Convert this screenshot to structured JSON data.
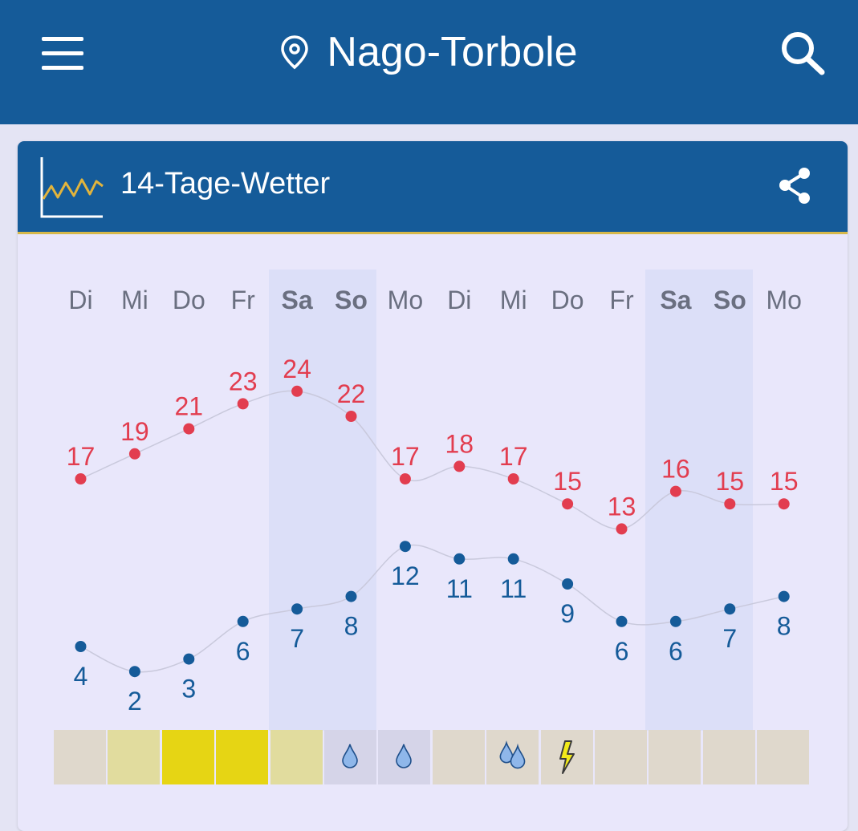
{
  "app_bar": {
    "title": "Nago-Torbole",
    "background": "#155b99",
    "menu_icon": "menu-icon",
    "location_icon": "location-pin-icon",
    "search_icon": "search-icon"
  },
  "card": {
    "title": "14-Tage-Wetter",
    "chart_icon": "chart-line-icon",
    "share_icon": "share-icon"
  },
  "days": [
    {
      "label": "Di",
      "weekend": false,
      "max": 17,
      "min": 4,
      "tile_color": "#dfd8cc",
      "precip_icon": ""
    },
    {
      "label": "Mi",
      "weekend": false,
      "max": 19,
      "min": 2,
      "tile_color": "#e1dc9e",
      "precip_icon": ""
    },
    {
      "label": "Do",
      "weekend": false,
      "max": 21,
      "min": 3,
      "tile_color": "#e6d514",
      "precip_icon": ""
    },
    {
      "label": "Fr",
      "weekend": false,
      "max": 23,
      "min": 6,
      "tile_color": "#e6d514",
      "precip_icon": ""
    },
    {
      "label": "Sa",
      "weekend": true,
      "max": 24,
      "min": 7,
      "tile_color": "#e1dc9e",
      "precip_icon": ""
    },
    {
      "label": "So",
      "weekend": true,
      "max": 22,
      "min": 8,
      "tile_color": "#d5d4e8",
      "precip_icon": "raindrop-icon"
    },
    {
      "label": "Mo",
      "weekend": false,
      "max": 17,
      "min": 12,
      "tile_color": "#d5d4e8",
      "precip_icon": "raindrop-icon"
    },
    {
      "label": "Di",
      "weekend": false,
      "max": 18,
      "min": 11,
      "tile_color": "#dfd8cc",
      "precip_icon": ""
    },
    {
      "label": "Mi",
      "weekend": false,
      "max": 17,
      "min": 11,
      "tile_color": "#dfd8cc",
      "precip_icon": "raindrops-icon"
    },
    {
      "label": "Do",
      "weekend": false,
      "max": 15,
      "min": 9,
      "tile_color": "#dfd8cc",
      "precip_icon": "thunder-icon"
    },
    {
      "label": "Fr",
      "weekend": false,
      "max": 13,
      "min": 6,
      "tile_color": "#dfd8cc",
      "precip_icon": ""
    },
    {
      "label": "Sa",
      "weekend": true,
      "max": 16,
      "min": 6,
      "tile_color": "#dfd8cc",
      "precip_icon": ""
    },
    {
      "label": "So",
      "weekend": true,
      "max": 15,
      "min": 7,
      "tile_color": "#dfd8cc",
      "precip_icon": ""
    },
    {
      "label": "Mo",
      "weekend": false,
      "max": 15,
      "min": 8,
      "tile_color": "#dfd8cc",
      "precip_icon": ""
    }
  ],
  "colors": {
    "max_temp": "#e23d4f",
    "min_temp": "#155b99",
    "weekend_band": "#dcdff8",
    "day_label": "#6a6f80"
  }
}
